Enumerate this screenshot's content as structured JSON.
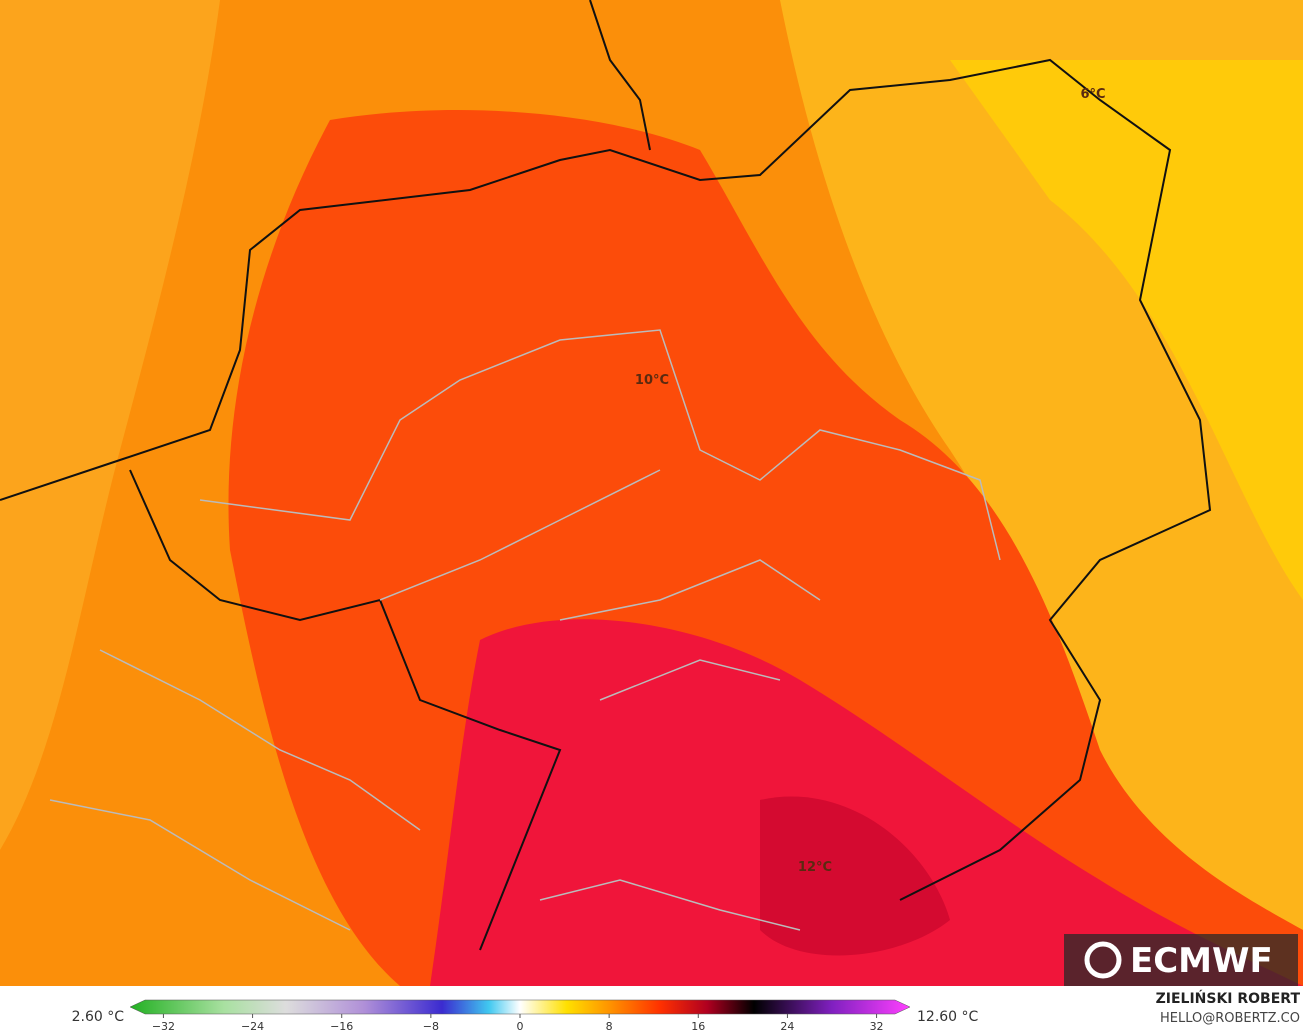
{
  "map": {
    "labels": [
      {
        "text": "6°C"
      },
      {
        "text": "10°C"
      },
      {
        "text": "12°C"
      }
    ]
  },
  "logo": "ECMWF",
  "legend": {
    "min_label": "2.60 °C",
    "max_label": "12.60 °C",
    "range": [
      -35,
      35
    ],
    "ticks": [
      {
        "value": -32,
        "label": "−32"
      },
      {
        "value": -24,
        "label": "−24"
      },
      {
        "value": -16,
        "label": "−16"
      },
      {
        "value": -8,
        "label": "−8"
      },
      0,
      8,
      16,
      24,
      32
    ]
  },
  "credit": {
    "author": "ZIELIŃSKI ROBERT",
    "contact": "HELLO@ROBERTZ.CO"
  }
}
